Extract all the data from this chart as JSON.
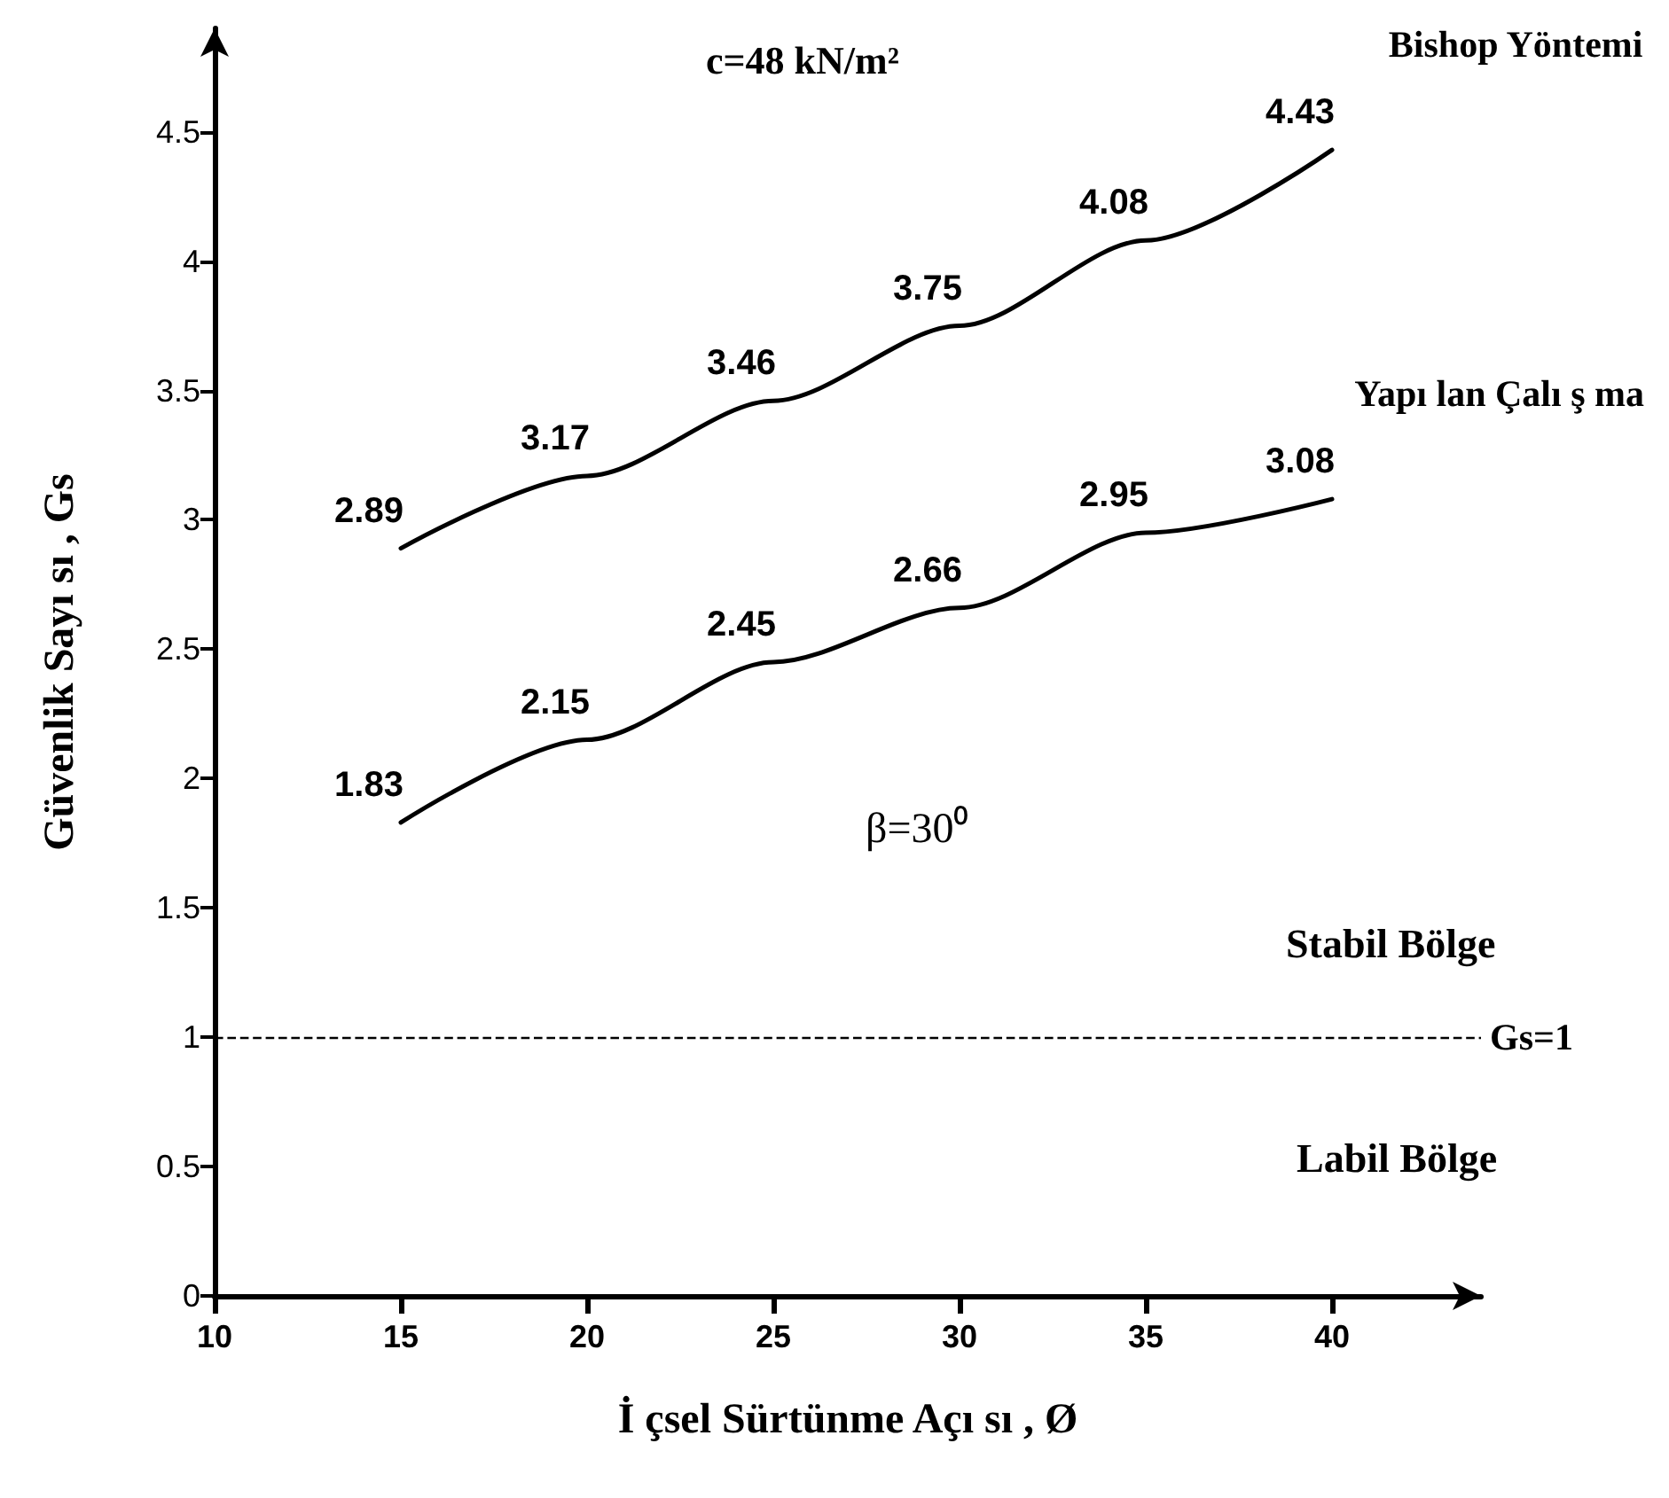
{
  "chart_data": {
    "type": "line",
    "xlabel": "İ çsel Sürtünme Açı sı , Ø",
    "ylabel": "Güvenlik Sayı sı , Gs",
    "x": [
      15,
      20,
      25,
      30,
      35,
      40
    ],
    "series": [
      {
        "name": "Bishop Yöntemi",
        "color": "#000000",
        "values": [
          2.89,
          3.17,
          3.46,
          3.75,
          4.08,
          4.43
        ]
      },
      {
        "name": "Yapı lan Çalı ş ma",
        "color": "#000000",
        "values": [
          1.83,
          2.15,
          2.45,
          2.66,
          2.95,
          3.08
        ]
      }
    ],
    "data_labels": true,
    "marker": "none",
    "line_style": "solid",
    "grid": false,
    "legend": false,
    "xlim": [
      10,
      44
    ],
    "xticks": [
      10,
      15,
      20,
      25,
      30,
      35,
      40
    ],
    "ylim": [
      0,
      4.9
    ],
    "yticks": [
      0,
      0.5,
      1,
      1.5,
      2,
      2.5,
      3,
      3.5,
      4,
      4.5
    ],
    "ref_lines": [
      {
        "axis": "y",
        "value": 1,
        "label": "Gs=1",
        "line_style": "dashed",
        "color": "#000000"
      }
    ],
    "annotations": [
      "c=48 kN/m²",
      "β=30⁰",
      "Stabil Bölge",
      "Labil Bölge"
    ]
  }
}
